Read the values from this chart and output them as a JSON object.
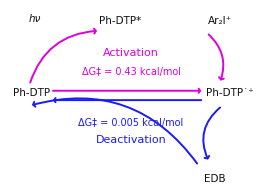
{
  "bg_color": "#ffffff",
  "magenta": "#dd00dd",
  "blue": "#1a1aff",
  "black": "#111111",
  "label_ph_dtp_star": "Ph-DTP*",
  "label_ar2i": "Ar₂I⁺",
  "label_hv": "hν",
  "label_ph_dtp_left": "Ph-DTP",
  "label_ph_dtp_right": "Ph-DTP˙⁺",
  "label_edb": "EDB",
  "label_activation": "Activation",
  "label_dg_activation": "ΔG‡ = 0.43 kcal/mol",
  "label_dg_deactivation": "ΔG‡ = 0.005 kcal/mol",
  "label_deactivation": "Deactivation",
  "figsize": [
    2.62,
    1.89
  ],
  "dpi": 100
}
